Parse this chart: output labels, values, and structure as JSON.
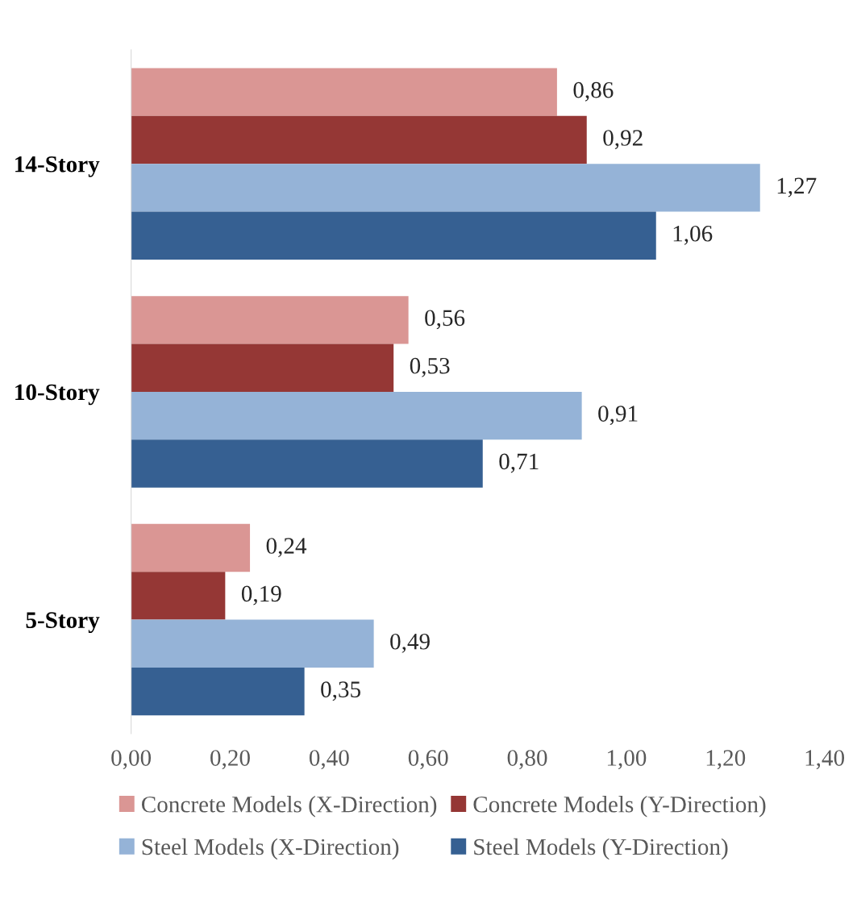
{
  "chart_data": {
    "type": "bar",
    "orientation": "horizontal",
    "categories": [
      "14-Story",
      "10-Story",
      "5-Story"
    ],
    "series": [
      {
        "name": "Concrete Models (X-Direction)",
        "color": "#da9694",
        "values": [
          0.86,
          0.56,
          0.24
        ],
        "value_labels": [
          "0,86",
          "0,56",
          "0,24"
        ]
      },
      {
        "name": "Concrete Models (Y-Direction)",
        "color": "#953735",
        "values": [
          0.92,
          0.53,
          0.19
        ],
        "value_labels": [
          "0,92",
          "0,53",
          "0,19"
        ]
      },
      {
        "name": "Steel Models (X-Direction)",
        "color": "#95b3d7",
        "values": [
          1.27,
          0.91,
          0.49
        ],
        "value_labels": [
          "1,27",
          "0,91",
          "0,49"
        ]
      },
      {
        "name": "Steel Models (Y-Direction)",
        "color": "#366092",
        "values": [
          1.06,
          0.71,
          0.35
        ],
        "value_labels": [
          "1,06",
          "0,71",
          "0,35"
        ]
      }
    ],
    "xlim": [
      0,
      1.4
    ],
    "xticks": [
      {
        "value": 0,
        "label": "0,00"
      },
      {
        "value": 0.2,
        "label": "0,20"
      },
      {
        "value": 0.4,
        "label": "0,40"
      },
      {
        "value": 0.6,
        "label": "0,60"
      },
      {
        "value": 0.8,
        "label": "0,80"
      },
      {
        "value": 1.0,
        "label": "1,00"
      },
      {
        "value": 1.2,
        "label": "1,20"
      },
      {
        "value": 1.4,
        "label": "1,40"
      }
    ],
    "grid": false,
    "legend": "bottom"
  }
}
